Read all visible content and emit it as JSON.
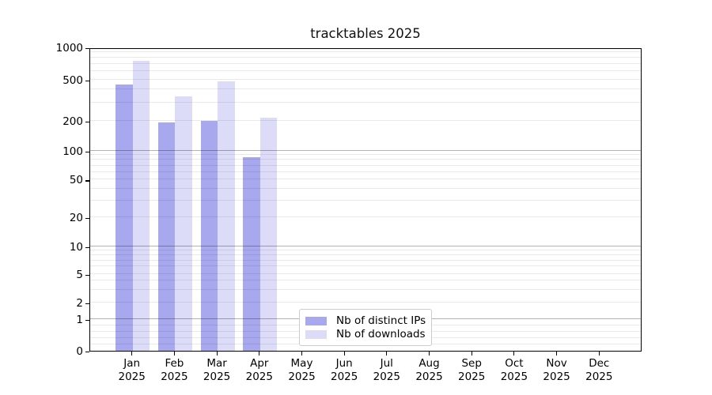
{
  "title": "tracktables 2025",
  "colors": {
    "ips_bar": "#a8a8ef",
    "downloads_bar": "#dcdcf8",
    "axis": "#000000",
    "legend_border": "#cccccc"
  },
  "legend": {
    "entries": [
      {
        "label": "Nb of distinct IPs",
        "color": "#a8a8ef"
      },
      {
        "label": "Nb of downloads",
        "color": "#dcdcf8"
      }
    ]
  },
  "axes": {
    "yticks": [
      0,
      1,
      2,
      5,
      10,
      20,
      50,
      100,
      200,
      500,
      1000
    ],
    "xticks": [
      {
        "month": "Jan",
        "year": "2025"
      },
      {
        "month": "Feb",
        "year": "2025"
      },
      {
        "month": "Mar",
        "year": "2025"
      },
      {
        "month": "Apr",
        "year": "2025"
      },
      {
        "month": "May",
        "year": "2025"
      },
      {
        "month": "Jun",
        "year": "2025"
      },
      {
        "month": "Jul",
        "year": "2025"
      },
      {
        "month": "Aug",
        "year": "2025"
      },
      {
        "month": "Sep",
        "year": "2025"
      },
      {
        "month": "Oct",
        "year": "2025"
      },
      {
        "month": "Nov",
        "year": "2025"
      },
      {
        "month": "Dec",
        "year": "2025"
      }
    ]
  },
  "chart_data": {
    "type": "bar",
    "title": "tracktables 2025",
    "categories": [
      "Jan 2025",
      "Feb 2025",
      "Mar 2025",
      "Apr 2025",
      "May 2025",
      "Jun 2025",
      "Jul 2025",
      "Aug 2025",
      "Sep 2025",
      "Oct 2025",
      "Nov 2025",
      "Dec 2025"
    ],
    "series": [
      {
        "name": "Nb of distinct IPs",
        "color": "#a8a8ef",
        "values": [
          450,
          190,
          197,
          85,
          0,
          0,
          0,
          0,
          0,
          0,
          0,
          0
        ]
      },
      {
        "name": "Nb of downloads",
        "color": "#dcdcf8",
        "values": [
          750,
          345,
          480,
          215,
          0,
          0,
          0,
          0,
          0,
          0,
          0,
          0
        ]
      }
    ],
    "xlabel": "",
    "ylabel": "",
    "yscale": "symlog",
    "ylim": [
      0,
      1000
    ],
    "yticks": [
      0,
      1,
      2,
      5,
      10,
      20,
      50,
      100,
      200,
      500,
      1000
    ],
    "grid": "on",
    "legend_position": "lower center"
  }
}
